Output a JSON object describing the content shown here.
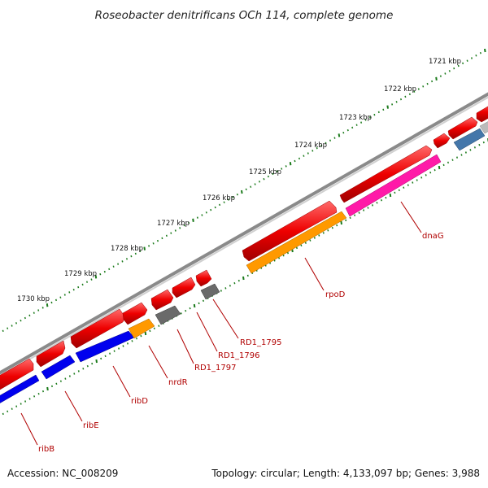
{
  "title": "Roseobacter denitrificans OCh 114, complete genome",
  "footer": {
    "accession": "Accession: NC_008209",
    "topology": "Topology: circular; Length: 4,133,097 bp; Genes: 3,988"
  },
  "scale_labels": [
    "1721 kbp",
    "1722 kbp",
    "1723 kbp",
    "1724 kbp",
    "1725 kbp",
    "1726 kbp",
    "1727 kbp",
    "1728 kbp",
    "1729 kbp",
    "1730 kbp"
  ],
  "gene_labels": [
    "dnaG",
    "rpoD",
    "RD1_1795",
    "RD1_1796",
    "RD1_1797",
    "nrdR",
    "ribD",
    "ribE",
    "ribB"
  ],
  "colors": {
    "cds": "#ee0000",
    "backbone": "#888888",
    "scale": "#1a7a1a",
    "label": "#b00000",
    "dnaG": "#ff1aa8",
    "rpoD": "#ff9900",
    "nrdR": "#ff9900",
    "rib": "#0000ee",
    "hypothetical": "#666666",
    "other": "#4477aa"
  }
}
